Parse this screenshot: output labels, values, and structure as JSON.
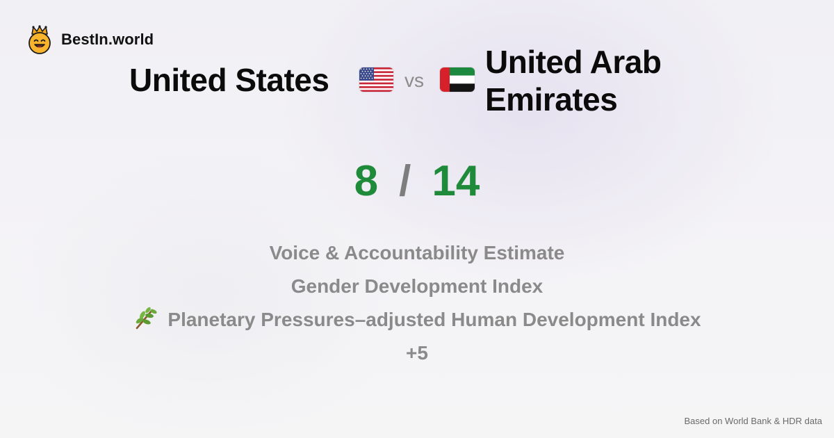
{
  "brand": {
    "logo_icon": "crown-smiley-icon",
    "name": "BestIn.world"
  },
  "comparison": {
    "country_a": {
      "name": "United States",
      "flag_icon": "us-flag-icon"
    },
    "vs_label": "vs",
    "country_b": {
      "name": "United Arab Emirates",
      "flag_icon": "uae-flag-icon"
    }
  },
  "score": {
    "a": "8",
    "separator": "/",
    "b": "14",
    "color": "#1e8a3a"
  },
  "metrics": [
    {
      "label": "Voice & Accountability Estimate"
    },
    {
      "label": "Gender Development Index"
    },
    {
      "label": "Planetary Pressures–adjusted Human Development Index",
      "icon": "leaf-branch-icon"
    },
    {
      "label": "+5"
    }
  ],
  "footer": {
    "source": "Based on World Bank & HDR data"
  }
}
